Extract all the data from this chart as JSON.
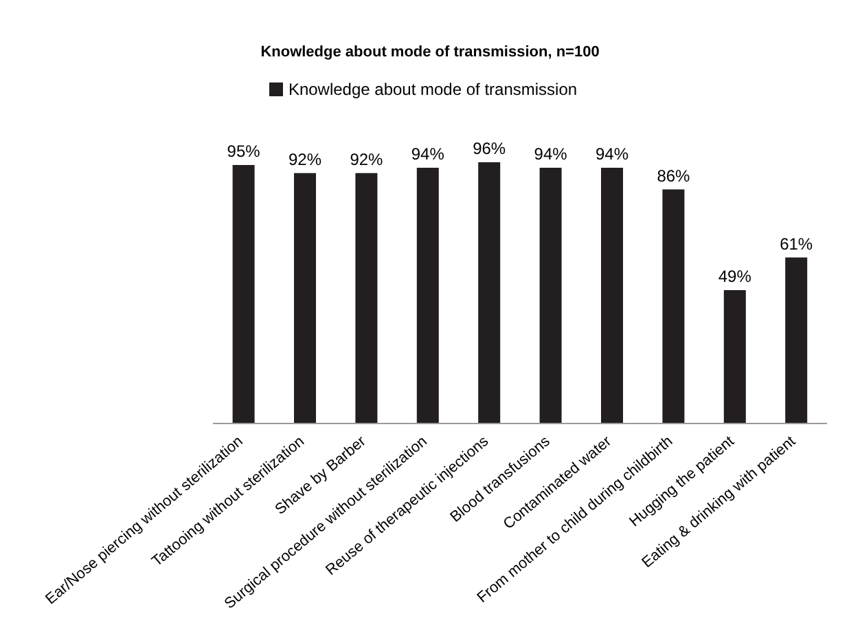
{
  "chart_data": {
    "type": "bar",
    "title": "Knowledge about mode of transmission, n=100",
    "categories": [
      "Ear/Nose piercing without sterilization",
      "Tattooing without sterilization",
      "Shave by Barber",
      "Surgical procedure without sterilization",
      "Reuse of therapeutic injections",
      "Blood transfusions",
      "Contaminated water",
      "From mother to child during childbirth",
      "Hugging the patient",
      "Eating & drinking with patient"
    ],
    "series": [
      {
        "name": "Knowledge about mode of transmission",
        "color": "#231f20",
        "values": [
          95,
          92,
          92,
          94,
          96,
          94,
          94,
          86,
          49,
          61
        ],
        "value_labels": [
          "95%",
          "92%",
          "92%",
          "94%",
          "96%",
          "94%",
          "94%",
          "86%",
          "49%",
          "61%"
        ]
      }
    ],
    "legend": "top",
    "grid": false
  }
}
